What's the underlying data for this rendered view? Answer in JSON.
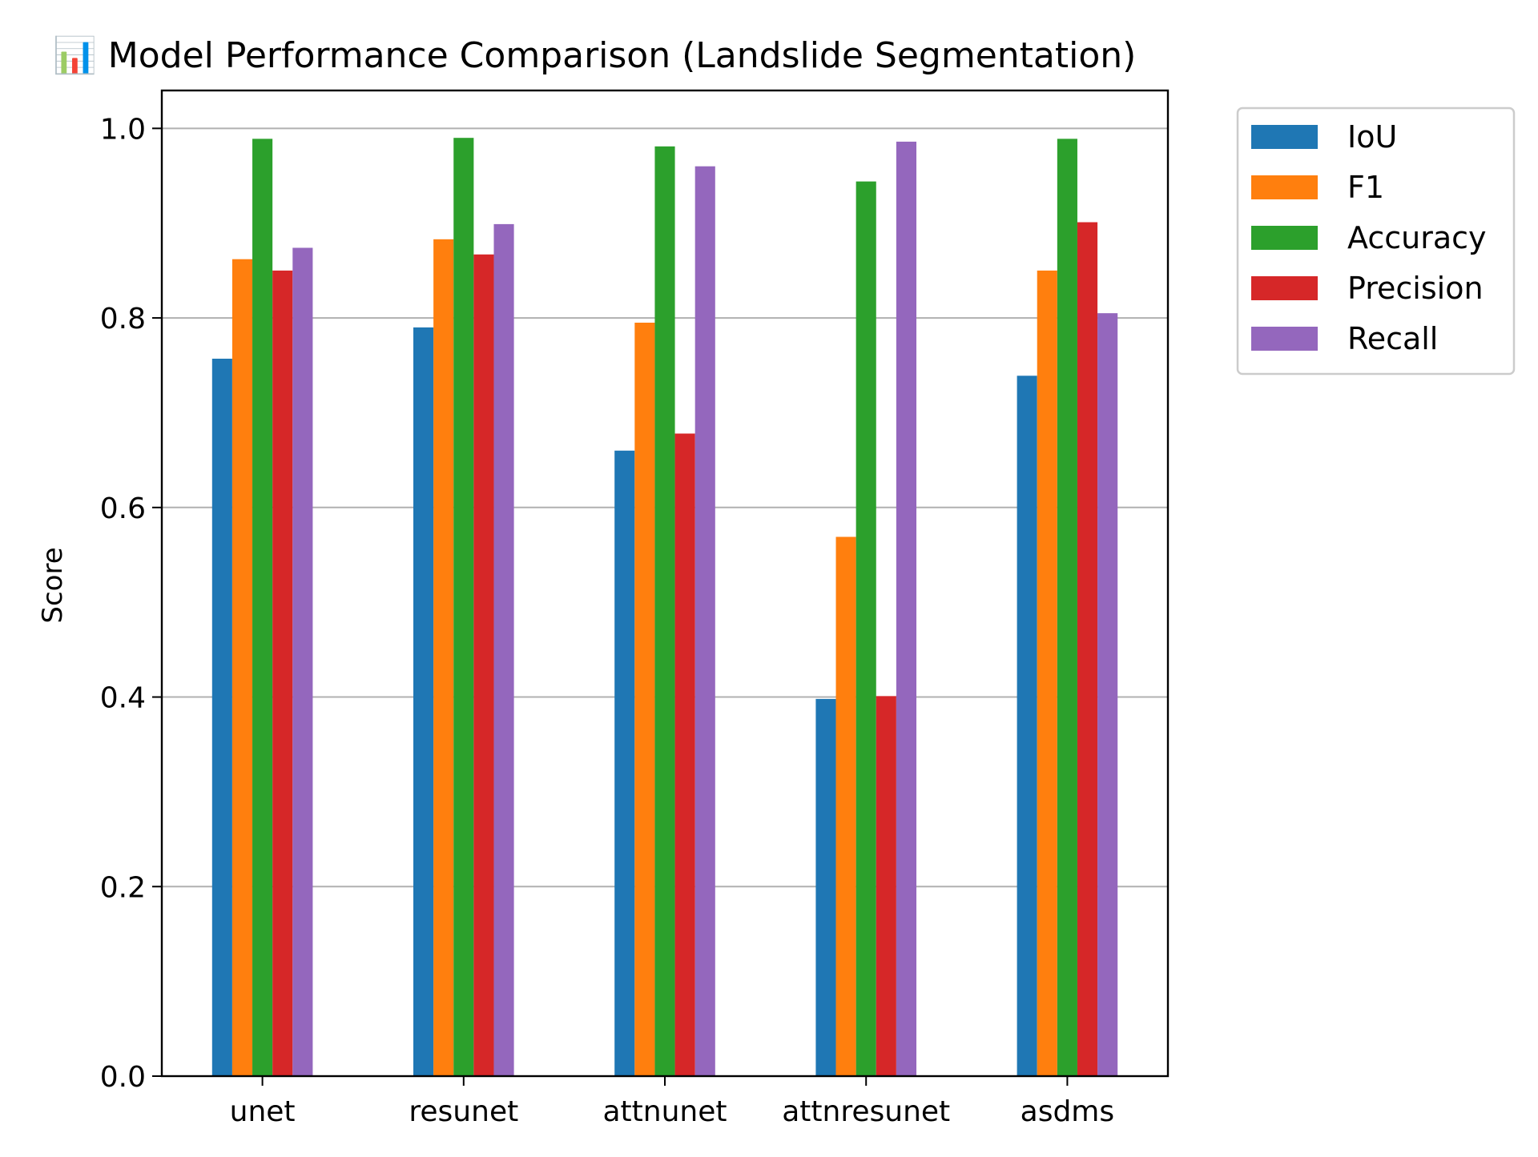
{
  "chart_data": {
    "type": "bar",
    "title": "📊 Model Performance Comparison (Landslide Segmentation)",
    "xlabel": "",
    "ylabel": "Score",
    "ylim": [
      0,
      1.04
    ],
    "yticks": [
      0.0,
      0.2,
      0.4,
      0.6,
      0.8,
      1.0
    ],
    "ytick_labels": [
      "0.0",
      "0.2",
      "0.4",
      "0.6",
      "0.8",
      "1.0"
    ],
    "grid": "y",
    "legend_position": "outside-top-right",
    "categories": [
      "unet",
      "resunet",
      "attnunet",
      "attnresunet",
      "asdms"
    ],
    "series": [
      {
        "name": "IoU",
        "color": "#1f77b4",
        "values": [
          0.757,
          0.79,
          0.66,
          0.398,
          0.739
        ]
      },
      {
        "name": "F1",
        "color": "#ff7f0e",
        "values": [
          0.862,
          0.883,
          0.795,
          0.569,
          0.85
        ]
      },
      {
        "name": "Accuracy",
        "color": "#2ca02c",
        "values": [
          0.989,
          0.99,
          0.981,
          0.944,
          0.989
        ]
      },
      {
        "name": "Precision",
        "color": "#d62728",
        "values": [
          0.85,
          0.867,
          0.678,
          0.401,
          0.901
        ]
      },
      {
        "name": "Recall",
        "color": "#9467bd",
        "values": [
          0.874,
          0.899,
          0.96,
          0.986,
          0.805
        ]
      }
    ]
  }
}
